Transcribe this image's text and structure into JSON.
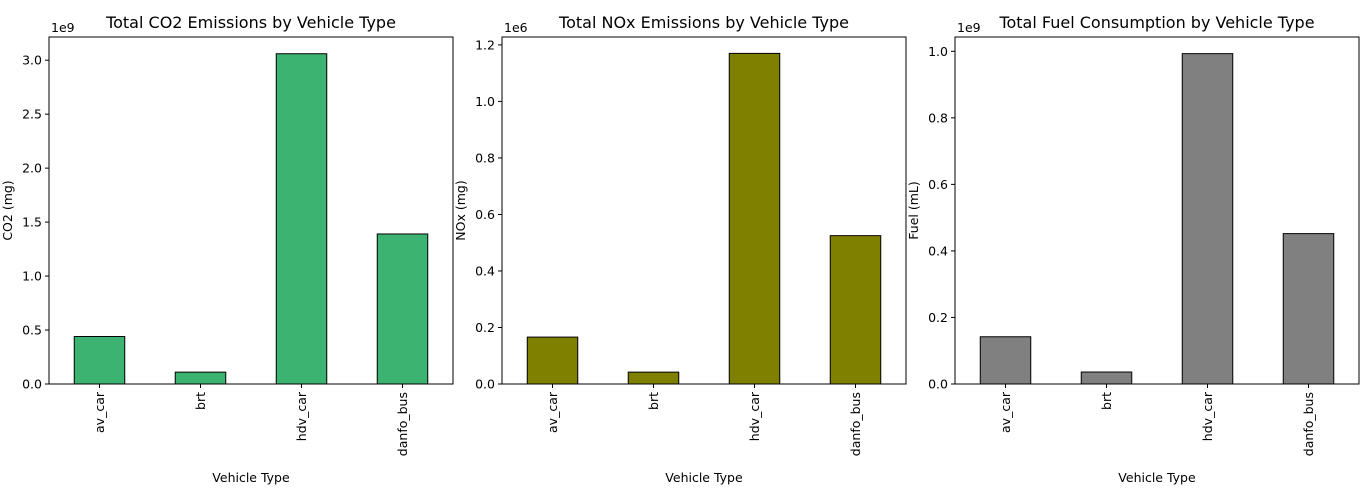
{
  "chart_data": [
    {
      "type": "bar",
      "title": "Total CO2 Emissions by Vehicle Type",
      "xlabel": "Vehicle Type",
      "ylabel": "CO2 (mg)",
      "offset_label": "1e9",
      "categories": [
        "av_car",
        "brt",
        "hdv_car",
        "danfo_bus"
      ],
      "values": [
        440000000,
        110000000,
        3060000000,
        1390000000
      ],
      "color": "#3cb371",
      "edge_color": "#000000",
      "ylim": [
        0,
        3215000000
      ],
      "yticks": [
        0,
        500000000,
        1000000000,
        1500000000,
        2000000000,
        2500000000,
        3000000000
      ],
      "ytick_labels": [
        "0.0",
        "0.5",
        "1.0",
        "1.5",
        "2.0",
        "2.5",
        "3.0"
      ],
      "grid": false,
      "legend": "none"
    },
    {
      "type": "bar",
      "title": "Total NOx Emissions by Vehicle Type",
      "xlabel": "Vehicle Type",
      "ylabel": "NOx (mg)",
      "offset_label": "1e6",
      "categories": [
        "av_car",
        "brt",
        "hdv_car",
        "danfo_bus"
      ],
      "values": [
        166000,
        42000,
        1170000,
        525000
      ],
      "color": "#808000",
      "edge_color": "#000000",
      "ylim": [
        0,
        1228000
      ],
      "yticks": [
        0,
        200000,
        400000,
        600000,
        800000,
        1000000,
        1200000
      ],
      "ytick_labels": [
        "0.0",
        "0.2",
        "0.4",
        "0.6",
        "0.8",
        "1.0",
        "1.2"
      ],
      "grid": false,
      "legend": "none"
    },
    {
      "type": "bar",
      "title": "Total Fuel Consumption by Vehicle Type",
      "xlabel": "Vehicle Type",
      "ylabel": "Fuel (mL)",
      "offset_label": "1e9",
      "categories": [
        "av_car",
        "brt",
        "hdv_car",
        "danfo_bus"
      ],
      "values": [
        142000000,
        36000000,
        993000000,
        452000000
      ],
      "color": "#808080",
      "edge_color": "#000000",
      "ylim": [
        0,
        1043000000
      ],
      "yticks": [
        0,
        200000000,
        400000000,
        600000000,
        800000000,
        1000000000
      ],
      "ytick_labels": [
        "0.0",
        "0.2",
        "0.4",
        "0.6",
        "0.8",
        "1.0"
      ],
      "grid": false,
      "legend": "none"
    }
  ]
}
